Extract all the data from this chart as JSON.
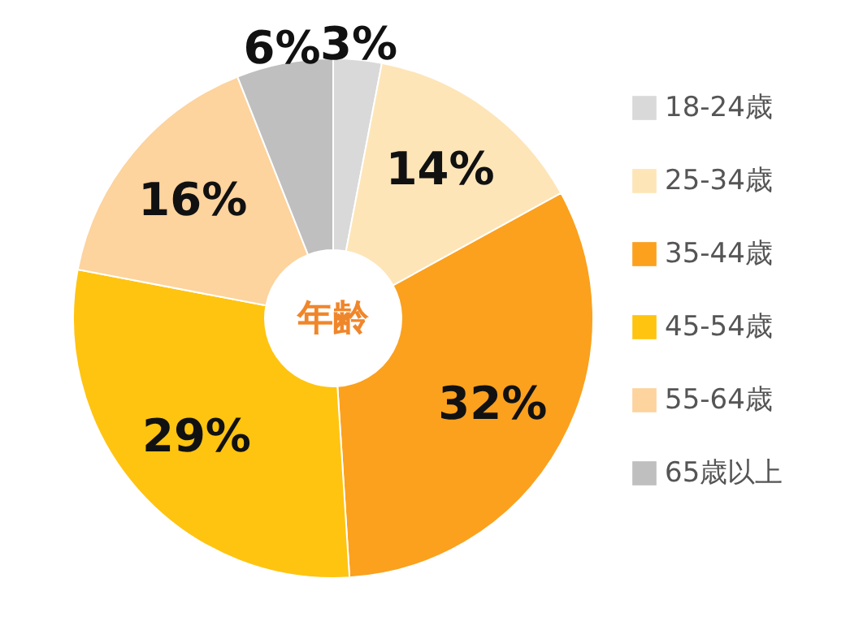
{
  "chart_data": {
    "type": "donut",
    "title": "年齢",
    "categories": [
      "18-24歳",
      "25-34歳",
      "35-44歳",
      "45-54歳",
      "55-64歳",
      "65歳以上"
    ],
    "values": [
      3,
      14,
      32,
      29,
      16,
      6
    ],
    "colors": [
      "#d9d9d9",
      "#fde5b8",
      "#fba11e",
      "#ffc410",
      "#fdd39e",
      "#bfbfbf"
    ],
    "value_labels": [
      "3%",
      "14%",
      "32%",
      "29%",
      "16%",
      "6%"
    ],
    "legend": "right"
  }
}
